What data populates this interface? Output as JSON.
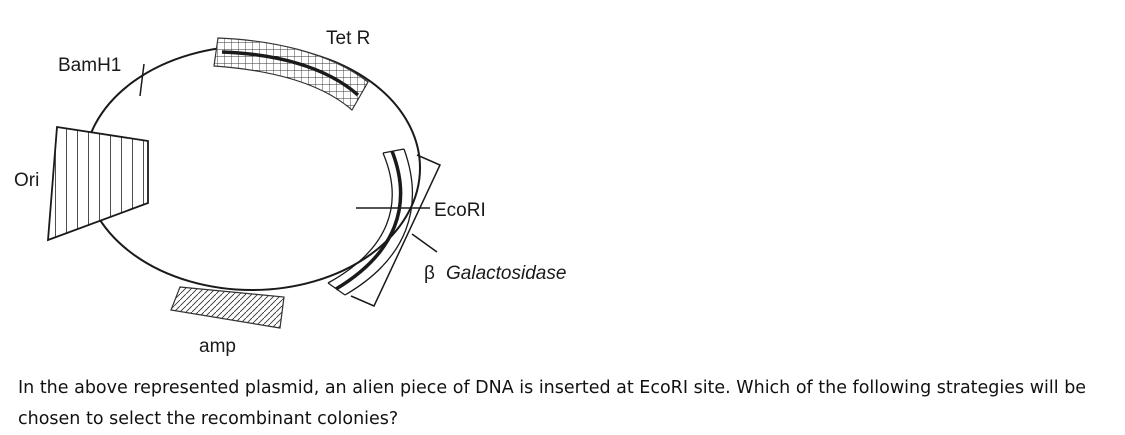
{
  "diagram": {
    "labels": {
      "tet_r": "Tet R",
      "bamh1": "BamH1",
      "ori": "Ori",
      "ecori": "EcoRI",
      "beta_symbol": "β",
      "galactosidase": "Galactosidase",
      "amp": "amp"
    }
  },
  "question": {
    "text": "In the above represented plasmid, an alien piece of DNA is inserted at EcoRI site. Which of the following strategies will be chosen to select the recombinant colonies?"
  }
}
